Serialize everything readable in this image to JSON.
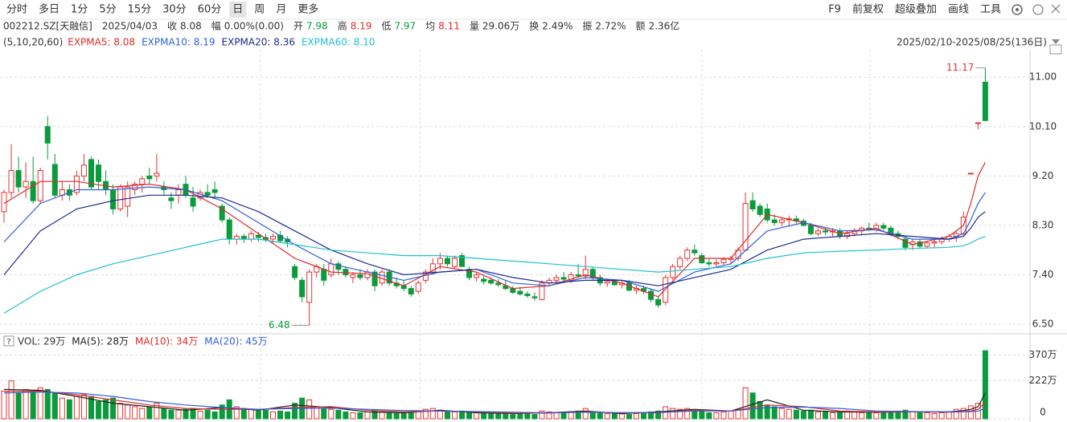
{
  "toolbar": {
    "periods": [
      "分时",
      "多日",
      "1分",
      "5分",
      "15分",
      "30分",
      "60分",
      "日",
      "周",
      "月",
      "更多"
    ],
    "active": "日",
    "tools": [
      "F9",
      "前复权",
      "超级叠加",
      "画线",
      "工具"
    ]
  },
  "quote": {
    "code": "002212.SZ[天融信]",
    "date": "2025/04/03",
    "fields": [
      {
        "label": "收",
        "value": 8.08,
        "color": "#333333"
      },
      {
        "label": "幅",
        "value": "0.00%(0.00)",
        "color": "#333333"
      },
      {
        "label": "开",
        "value": 7.98,
        "color": "#0a9b3c"
      },
      {
        "label": "高",
        "value": 8.19,
        "color": "#e02a2a"
      },
      {
        "label": "低",
        "value": 7.97,
        "color": "#0a9b3c"
      },
      {
        "label": "均",
        "value": 8.11,
        "color": "#e02a2a"
      },
      {
        "label": "量",
        "value": "29.06万",
        "color": "#333333"
      },
      {
        "label": "换",
        "value": "2.49%",
        "color": "#333333"
      },
      {
        "label": "振",
        "value": "2.72%",
        "color": "#333333"
      },
      {
        "label": "额",
        "value": "2.36亿",
        "color": "#333333"
      }
    ]
  },
  "chart_data": {
    "type": "candlestick",
    "params": "(5,10,20,60)",
    "range": "2025/02/10-2025/08/25(136日)",
    "annotations": [
      "11.17",
      "6.48"
    ],
    "up_color": "#e83030",
    "down_color": "#0a9b3c",
    "grid": true,
    "ylim": [
      6.37,
      11.5
    ],
    "yticks": [
      {
        "value": 6.5,
        "label": "6.50"
      },
      {
        "value": 7.4,
        "label": "7.40"
      },
      {
        "value": 8.3,
        "label": "8.30"
      },
      {
        "value": 9.2,
        "label": "9.20"
      },
      {
        "value": 10.1,
        "label": "10.10"
      },
      {
        "value": 11.0,
        "label": "11.00"
      }
    ],
    "ohlc": [
      [
        8.55,
        8.95,
        8.35,
        8.9
      ],
      [
        8.9,
        9.78,
        8.8,
        9.3
      ],
      [
        9.3,
        9.55,
        8.9,
        9.0
      ],
      [
        9.0,
        9.45,
        8.8,
        9.1
      ],
      [
        9.1,
        9.55,
        8.7,
        8.75
      ],
      [
        8.75,
        9.35,
        8.7,
        9.3
      ],
      [
        10.1,
        10.29,
        9.5,
        9.8
      ],
      [
        9.41,
        9.6,
        8.8,
        8.85
      ],
      [
        8.85,
        9.1,
        8.75,
        8.95
      ],
      [
        8.95,
        9.05,
        8.75,
        8.85
      ],
      [
        8.9,
        9.3,
        8.85,
        9.2
      ],
      [
        9.2,
        9.6,
        9.1,
        9.4
      ],
      [
        9.5,
        9.55,
        8.95,
        9.0
      ],
      [
        9.4,
        9.5,
        8.95,
        9.1
      ],
      [
        9.1,
        9.3,
        8.85,
        8.95
      ],
      [
        8.95,
        9.05,
        8.5,
        8.6
      ],
      [
        8.6,
        9.05,
        8.55,
        9.0
      ],
      [
        8.65,
        9.1,
        8.45,
        9.0
      ],
      [
        8.95,
        9.1,
        8.85,
        9.05
      ],
      [
        9.05,
        9.2,
        8.9,
        9.15
      ],
      [
        9.2,
        9.35,
        9.05,
        9.15
      ],
      [
        9.2,
        9.6,
        9.1,
        9.25
      ],
      [
        9.0,
        9.1,
        8.85,
        8.95
      ],
      [
        8.8,
        8.9,
        8.6,
        8.75
      ],
      [
        8.85,
        9.05,
        8.7,
        8.95
      ],
      [
        9.05,
        9.2,
        8.8,
        8.85
      ],
      [
        8.8,
        9.0,
        8.55,
        8.65
      ],
      [
        8.8,
        8.95,
        8.75,
        8.9
      ],
      [
        8.9,
        9.05,
        8.8,
        8.85
      ],
      [
        8.95,
        9.1,
        8.8,
        8.9
      ],
      [
        8.65,
        8.7,
        8.35,
        8.4
      ],
      [
        8.4,
        8.45,
        7.95,
        8.05
      ],
      [
        8.05,
        8.15,
        7.95,
        8.1
      ],
      [
        8.1,
        8.15,
        7.98,
        8.05
      ],
      [
        8.05,
        8.2,
        8.0,
        8.15
      ],
      [
        8.12,
        8.18,
        8.0,
        8.08
      ],
      [
        8.08,
        8.15,
        8.0,
        8.05
      ],
      [
        8.05,
        8.15,
        7.98,
        8.1
      ],
      [
        8.12,
        8.2,
        8.0,
        8.02
      ],
      [
        8.05,
        8.1,
        7.9,
        8.0
      ],
      [
        7.55,
        7.6,
        7.3,
        7.35
      ],
      [
        7.3,
        7.35,
        6.9,
        7.0
      ],
      [
        6.9,
        7.5,
        6.48,
        7.45
      ],
      [
        7.45,
        7.6,
        7.35,
        7.55
      ],
      [
        7.5,
        7.6,
        7.2,
        7.3
      ],
      [
        7.4,
        7.7,
        7.35,
        7.6
      ],
      [
        7.6,
        7.65,
        7.4,
        7.5
      ],
      [
        7.5,
        7.55,
        7.35,
        7.4
      ],
      [
        7.35,
        7.45,
        7.25,
        7.4
      ],
      [
        7.4,
        7.5,
        7.3,
        7.35
      ],
      [
        7.35,
        7.5,
        7.3,
        7.45
      ],
      [
        7.45,
        7.5,
        7.1,
        7.2
      ],
      [
        7.25,
        7.5,
        7.2,
        7.45
      ],
      [
        7.45,
        7.5,
        7.2,
        7.25
      ],
      [
        7.25,
        7.35,
        7.15,
        7.2
      ],
      [
        7.2,
        7.3,
        7.1,
        7.15
      ],
      [
        7.15,
        7.2,
        7.0,
        7.05
      ],
      [
        7.1,
        7.3,
        7.05,
        7.25
      ],
      [
        7.3,
        7.5,
        7.25,
        7.45
      ],
      [
        7.45,
        7.7,
        7.4,
        7.6
      ],
      [
        7.6,
        7.8,
        7.5,
        7.7
      ],
      [
        7.7,
        7.75,
        7.55,
        7.6
      ],
      [
        7.55,
        7.75,
        7.5,
        7.7
      ],
      [
        7.75,
        7.8,
        7.55,
        7.55
      ],
      [
        7.5,
        7.55,
        7.3,
        7.35
      ],
      [
        7.35,
        7.45,
        7.28,
        7.4
      ],
      [
        7.32,
        7.38,
        7.22,
        7.28
      ],
      [
        7.3,
        7.35,
        7.22,
        7.25
      ],
      [
        7.25,
        7.32,
        7.18,
        7.22
      ],
      [
        7.2,
        7.3,
        7.12,
        7.15
      ],
      [
        7.15,
        7.2,
        7.05,
        7.08
      ],
      [
        7.1,
        7.18,
        7.02,
        7.05
      ],
      [
        7.05,
        7.1,
        6.98,
        7.02
      ],
      [
        7.0,
        7.08,
        6.93,
        6.98
      ],
      [
        6.95,
        7.3,
        6.93,
        7.25
      ],
      [
        7.25,
        7.35,
        7.2,
        7.3
      ],
      [
        7.3,
        7.4,
        7.25,
        7.35
      ],
      [
        7.35,
        7.45,
        7.28,
        7.32
      ],
      [
        7.3,
        7.45,
        7.25,
        7.4
      ],
      [
        7.4,
        7.6,
        7.35,
        7.38
      ],
      [
        7.38,
        7.75,
        7.32,
        7.5
      ],
      [
        7.5,
        7.55,
        7.3,
        7.35
      ],
      [
        7.35,
        7.4,
        7.2,
        7.25
      ],
      [
        7.25,
        7.3,
        7.18,
        7.28
      ],
      [
        7.28,
        7.32,
        7.2,
        7.22
      ],
      [
        7.22,
        7.3,
        7.15,
        7.25
      ],
      [
        7.25,
        7.3,
        7.1,
        7.12
      ],
      [
        7.12,
        7.2,
        7.05,
        7.15
      ],
      [
        7.15,
        7.2,
        7.05,
        7.1
      ],
      [
        7.1,
        7.15,
        6.9,
        6.95
      ],
      [
        6.95,
        7.0,
        6.8,
        6.85
      ],
      [
        6.9,
        7.4,
        6.85,
        7.35
      ],
      [
        7.35,
        7.6,
        7.3,
        7.55
      ],
      [
        7.55,
        7.75,
        7.5,
        7.7
      ],
      [
        7.7,
        7.9,
        7.65,
        7.85
      ],
      [
        7.85,
        7.95,
        7.75,
        7.8
      ],
      [
        7.75,
        7.8,
        7.6,
        7.62
      ],
      [
        7.62,
        7.7,
        7.55,
        7.6
      ],
      [
        7.6,
        7.68,
        7.55,
        7.62
      ],
      [
        7.62,
        7.72,
        7.58,
        7.68
      ],
      [
        7.68,
        7.75,
        7.6,
        7.7
      ],
      [
        7.7,
        7.9,
        7.65,
        7.85
      ],
      [
        7.85,
        8.9,
        7.85,
        8.7
      ],
      [
        8.75,
        8.9,
        8.55,
        8.6
      ],
      [
        8.65,
        8.7,
        8.45,
        8.5
      ],
      [
        8.6,
        8.7,
        8.35,
        8.4
      ],
      [
        8.4,
        8.5,
        8.3,
        8.35
      ],
      [
        8.35,
        8.45,
        8.28,
        8.4
      ],
      [
        8.4,
        8.48,
        8.3,
        8.42
      ],
      [
        8.42,
        8.48,
        8.32,
        8.38
      ],
      [
        8.38,
        8.42,
        8.28,
        8.3
      ],
      [
        8.3,
        8.35,
        8.12,
        8.15
      ],
      [
        8.15,
        8.25,
        8.1,
        8.2
      ],
      [
        8.2,
        8.25,
        8.12,
        8.18
      ],
      [
        8.18,
        8.25,
        8.1,
        8.2
      ],
      [
        8.2,
        8.25,
        8.05,
        8.1
      ],
      [
        8.1,
        8.2,
        8.05,
        8.15
      ],
      [
        8.15,
        8.25,
        8.1,
        8.2
      ],
      [
        8.2,
        8.28,
        8.12,
        8.25
      ],
      [
        8.25,
        8.35,
        8.2,
        8.22
      ],
      [
        8.22,
        8.35,
        8.18,
        8.3
      ],
      [
        8.3,
        8.35,
        8.2,
        8.25
      ],
      [
        8.25,
        8.3,
        8.1,
        8.15
      ],
      [
        8.15,
        8.2,
        8.05,
        8.1
      ],
      [
        8.05,
        8.1,
        7.85,
        7.9
      ],
      [
        7.95,
        8.05,
        7.85,
        8.0
      ],
      [
        8.0,
        8.05,
        7.88,
        7.92
      ],
      [
        7.92,
        8.0,
        7.88,
        7.98
      ],
      [
        7.98,
        8.05,
        7.9,
        8.0
      ],
      [
        8.0,
        8.1,
        7.95,
        8.05
      ],
      [
        8.05,
        8.15,
        8.0,
        8.1
      ],
      [
        8.1,
        8.2,
        8.0,
        8.15
      ],
      [
        8.15,
        8.55,
        8.1,
        8.45
      ],
      [
        9.25,
        9.25,
        9.25,
        9.25
      ],
      [
        10.17,
        10.17,
        10.05,
        10.17
      ],
      [
        10.91,
        11.17,
        10.2,
        10.21
      ]
    ],
    "line_x": [
      0,
      5,
      10,
      15,
      20,
      25,
      30,
      35,
      40,
      45,
      50,
      55,
      60,
      65,
      70,
      75,
      80,
      85,
      90,
      95,
      100,
      105,
      110,
      115,
      120,
      125,
      130,
      132,
      133,
      134,
      135
    ],
    "series": [
      {
        "name": "EXPMA5: 8.08",
        "color": "#e02a2a",
        "values": [
          8.7,
          9.1,
          9.1,
          9.0,
          9.05,
          8.95,
          8.6,
          8.15,
          7.7,
          7.45,
          7.42,
          7.2,
          7.55,
          7.45,
          7.15,
          7.2,
          7.4,
          7.25,
          7.0,
          7.7,
          7.7,
          8.5,
          8.35,
          8.15,
          8.25,
          7.95,
          8.1,
          8.3,
          8.7,
          9.2,
          9.45
        ]
      },
      {
        "name": "EXPMA10: 8.19",
        "color": "#2f5fd8",
        "values": [
          8.0,
          8.7,
          8.95,
          8.95,
          9.0,
          8.95,
          8.75,
          8.35,
          7.95,
          7.6,
          7.45,
          7.3,
          7.45,
          7.5,
          7.25,
          7.2,
          7.35,
          7.3,
          7.1,
          7.45,
          7.6,
          8.2,
          8.35,
          8.2,
          8.22,
          8.05,
          8.05,
          8.15,
          8.4,
          8.7,
          8.9
        ]
      },
      {
        "name": "EXPMA20: 8.36",
        "color": "#1c2a8c",
        "values": [
          7.4,
          8.2,
          8.6,
          8.75,
          8.85,
          8.85,
          8.8,
          8.55,
          8.2,
          7.85,
          7.6,
          7.4,
          7.45,
          7.5,
          7.35,
          7.25,
          7.3,
          7.3,
          7.2,
          7.35,
          7.5,
          7.85,
          8.05,
          8.1,
          8.15,
          8.1,
          8.05,
          8.1,
          8.25,
          8.45,
          8.55
        ]
      },
      {
        "name": "EXPMA60: 8.10",
        "color": "#1fbfcf",
        "values": [
          6.7,
          7.1,
          7.4,
          7.6,
          7.75,
          7.9,
          8.05,
          8.05,
          7.95,
          7.85,
          7.8,
          7.75,
          7.75,
          7.7,
          7.65,
          7.6,
          7.55,
          7.5,
          7.45,
          7.5,
          7.55,
          7.7,
          7.8,
          7.83,
          7.85,
          7.88,
          7.9,
          7.93,
          7.98,
          8.05,
          8.1
        ]
      }
    ],
    "volume": {
      "label": "VOL: 29万",
      "ylim": [
        0,
        400
      ],
      "yticks": [
        0,
        {
          "value": 222,
          "label": "222万"
        },
        {
          "value": 370,
          "label": "370万"
        }
      ],
      "values": [
        160,
        220,
        150,
        170,
        160,
        180,
        170,
        150,
        120,
        110,
        130,
        140,
        130,
        100,
        110,
        120,
        90,
        80,
        70,
        60,
        70,
        90,
        60,
        50,
        50,
        55,
        60,
        45,
        50,
        40,
        80,
        110,
        70,
        60,
        55,
        45,
        50,
        40,
        45,
        40,
        90,
        120,
        110,
        70,
        60,
        55,
        50,
        40,
        35,
        35,
        40,
        45,
        40,
        35,
        30,
        30,
        35,
        45,
        55,
        60,
        50,
        45,
        40,
        45,
        40,
        35,
        30,
        30,
        28,
        30,
        25,
        28,
        30,
        25,
        45,
        40,
        35,
        35,
        40,
        45,
        60,
        40,
        35,
        30,
        30,
        28,
        25,
        30,
        35,
        40,
        45,
        70,
        60,
        55,
        60,
        50,
        45,
        35,
        35,
        40,
        45,
        55,
        180,
        150,
        100,
        80,
        70,
        60,
        55,
        50,
        45,
        50,
        40,
        40,
        35,
        40,
        45,
        40,
        35,
        40,
        35,
        40,
        40,
        45,
        50,
        40,
        35,
        35,
        30,
        35,
        40,
        55,
        60,
        75,
        90,
        395
      ],
      "series": [
        {
          "name": "MA(5): 28万",
          "color": "#222222",
          "values": [
            170,
            165,
            130,
            90,
            70,
            50,
            65,
            50,
            80,
            65,
            40,
            35,
            50,
            35,
            30,
            35,
            45,
            30,
            40,
            55,
            45,
            110,
            50,
            40,
            38,
            40,
            40,
            48,
            55,
            70,
            150
          ]
        },
        {
          "name": "MA(10): 34万",
          "color": "#e02a2a",
          "values": [
            160,
            160,
            140,
            110,
            80,
            60,
            55,
            55,
            65,
            70,
            50,
            40,
            45,
            40,
            33,
            33,
            40,
            35,
            35,
            50,
            45,
            80,
            70,
            45,
            40,
            40,
            38,
            42,
            46,
            55,
            95
          ]
        },
        {
          "name": "MA(20): 45万",
          "color": "#2f5fd8",
          "values": [
            150,
            155,
            150,
            130,
            100,
            80,
            65,
            55,
            60,
            62,
            55,
            48,
            45,
            42,
            38,
            35,
            38,
            36,
            37,
            45,
            45,
            65,
            68,
            60,
            45,
            42,
            40,
            41,
            42,
            45,
            60
          ]
        }
      ]
    }
  }
}
